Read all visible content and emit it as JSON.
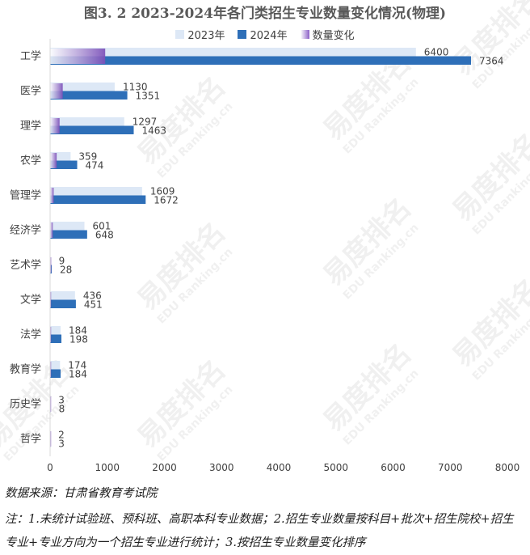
{
  "title": "图3. 2  2023-2024年各门类招生专业数量变化情况(物理)",
  "legend": {
    "s2023": "2023年",
    "s2024": "2024年",
    "change": "数量变化"
  },
  "colors": {
    "s2023": "#dde8f6",
    "s2024": "#2e6fb8",
    "change": "#8b5fc7"
  },
  "chart_data": {
    "type": "bar",
    "orientation": "horizontal",
    "categories": [
      "工学",
      "医学",
      "理学",
      "农学",
      "管理学",
      "经济学",
      "艺术学",
      "文学",
      "法学",
      "教育学",
      "历史学",
      "哲学"
    ],
    "series": [
      {
        "name": "2023年",
        "values": [
          6400,
          1130,
          1297,
          359,
          1609,
          601,
          9,
          436,
          184,
          174,
          3,
          2
        ]
      },
      {
        "name": "2024年",
        "values": [
          7364,
          1351,
          1463,
          474,
          1672,
          648,
          28,
          451,
          198,
          184,
          8,
          3
        ]
      },
      {
        "name": "数量变化",
        "values": [
          964,
          221,
          166,
          115,
          63,
          47,
          19,
          15,
          14,
          10,
          5,
          1
        ]
      }
    ],
    "xlim": [
      0,
      8000
    ],
    "xticks": [
      "0",
      "1000",
      "2000",
      "3000",
      "4000",
      "5000",
      "6000",
      "7000",
      "8000"
    ],
    "legend_position": "top",
    "grid": false
  },
  "watermark": {
    "main": "易度排名",
    "sub": "EDU Ranking.cn"
  },
  "source": "数据来源：甘肃省教育考试院",
  "note": "注：1.未统计试验班、预科班、高职本科专业数据；2.招生专业数量按科目+批次+招生院校+招生专业+专业方向为一个招生专业进行统计；3.按招生专业数量变化排序"
}
